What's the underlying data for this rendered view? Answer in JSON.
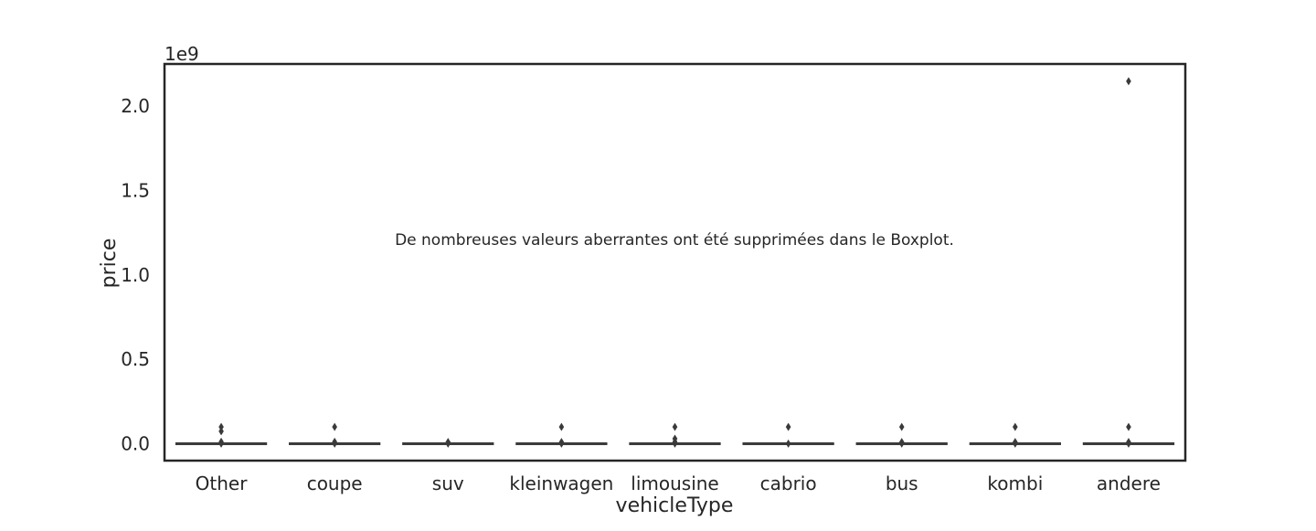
{
  "chart_data": {
    "type": "box",
    "xlabel": "vehicleType",
    "ylabel": "price",
    "y_offset_text": "1e9",
    "y_scale_multiplier": 1000000000,
    "ylim": [
      -100000000,
      2250000000
    ],
    "yticks": [
      0,
      500000000,
      1000000000,
      1500000000,
      2000000000
    ],
    "ytick_labels": [
      "0.0",
      "0.5",
      "1.0",
      "1.5",
      "2.0"
    ],
    "grid": false,
    "annotation": {
      "text": "De nombreuses valeurs aberrantes ont été supprimées dans le Boxplot.",
      "color": "#cc4c4c"
    },
    "colors": {
      "frame": "#262626",
      "box": "#3a3a3a",
      "annotation": "#cc4c4c"
    },
    "categories": [
      "Other",
      "coupe",
      "suv",
      "kleinwagen",
      "limousine",
      "cabrio",
      "bus",
      "kombi",
      "andere"
    ],
    "boxes": [
      {
        "category": "Other",
        "median": 1500,
        "q1": 600,
        "q3": 5000,
        "outliers": [
          100000000,
          74000000,
          12000000,
          1000000
        ]
      },
      {
        "category": "coupe",
        "median": 6000,
        "q1": 2000,
        "q3": 15000,
        "outliers": [
          100000000,
          12000000,
          1000000
        ]
      },
      {
        "category": "suv",
        "median": 9000,
        "q1": 4000,
        "q3": 18000,
        "outliers": [
          10000000,
          1000000
        ]
      },
      {
        "category": "kleinwagen",
        "median": 1500,
        "q1": 700,
        "q3": 3500,
        "outliers": [
          100000000,
          10000000,
          1000000
        ]
      },
      {
        "category": "limousine",
        "median": 3000,
        "q1": 1000,
        "q3": 8000,
        "outliers": [
          100000000,
          30000000,
          12000000,
          1000000
        ]
      },
      {
        "category": "cabrio",
        "median": 5500,
        "q1": 2000,
        "q3": 12000,
        "outliers": [
          100000000,
          1000000
        ]
      },
      {
        "category": "bus",
        "median": 4500,
        "q1": 1500,
        "q3": 9000,
        "outliers": [
          100000000,
          10000000,
          1000000
        ]
      },
      {
        "category": "kombi",
        "median": 2800,
        "q1": 1000,
        "q3": 7000,
        "outliers": [
          100000000,
          10000000,
          1000000
        ]
      },
      {
        "category": "andere",
        "median": 2000,
        "q1": 600,
        "q3": 6000,
        "outliers": [
          2147483647,
          100000000,
          10000000,
          1000000
        ]
      }
    ]
  }
}
